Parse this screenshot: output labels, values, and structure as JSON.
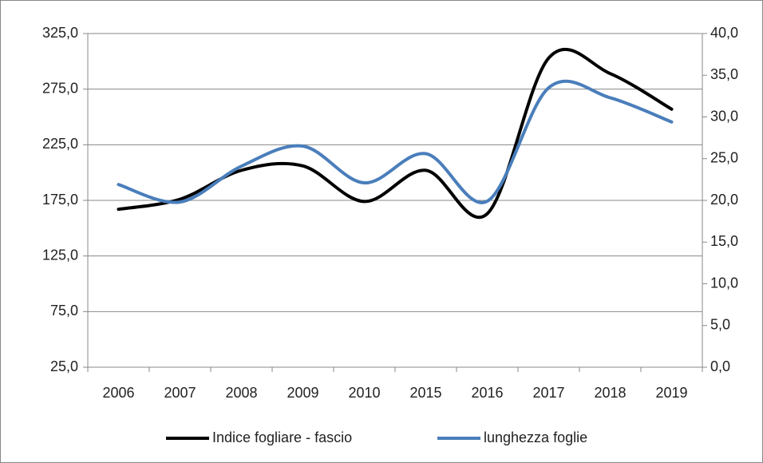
{
  "chart_data": {
    "type": "line",
    "categories": [
      "2006",
      "2007",
      "2008",
      "2009",
      "2010",
      "2015",
      "2016",
      "2017",
      "2018",
      "2019"
    ],
    "series": [
      {
        "name": "Indice fogliare - fascio",
        "color": "#000000",
        "axis": "y",
        "values": [
          167,
          176,
          202,
          206,
          174,
          202,
          163,
          303,
          289,
          257
        ]
      },
      {
        "name": "lunghezza foglie",
        "color": "#4a7ebb",
        "axis": "y2",
        "values": [
          21.9,
          19.8,
          24.1,
          26.5,
          22.1,
          25.6,
          19.9,
          33.5,
          32.3,
          29.4
        ]
      }
    ],
    "ylim": [
      25,
      325
    ],
    "yticks": [
      {
        "value": 25,
        "label": "25,0"
      },
      {
        "value": 75,
        "label": "75,0"
      },
      {
        "value": 125,
        "label": "125,0"
      },
      {
        "value": 175,
        "label": "175,0"
      },
      {
        "value": 225,
        "label": "225,0"
      },
      {
        "value": 275,
        "label": "275,0"
      },
      {
        "value": 325,
        "label": "325,0"
      }
    ],
    "y2lim": [
      0,
      40
    ],
    "y2ticks": [
      {
        "value": 0,
        "label": "0,0"
      },
      {
        "value": 5,
        "label": "5,0"
      },
      {
        "value": 10,
        "label": "10,0"
      },
      {
        "value": 15,
        "label": "15,0"
      },
      {
        "value": 20,
        "label": "20,0"
      },
      {
        "value": 25,
        "label": "25,0"
      },
      {
        "value": 30,
        "label": "30,0"
      },
      {
        "value": 35,
        "label": "35,0"
      },
      {
        "value": 40,
        "label": "40,0"
      }
    ],
    "grid": true,
    "legend": "bottom"
  }
}
